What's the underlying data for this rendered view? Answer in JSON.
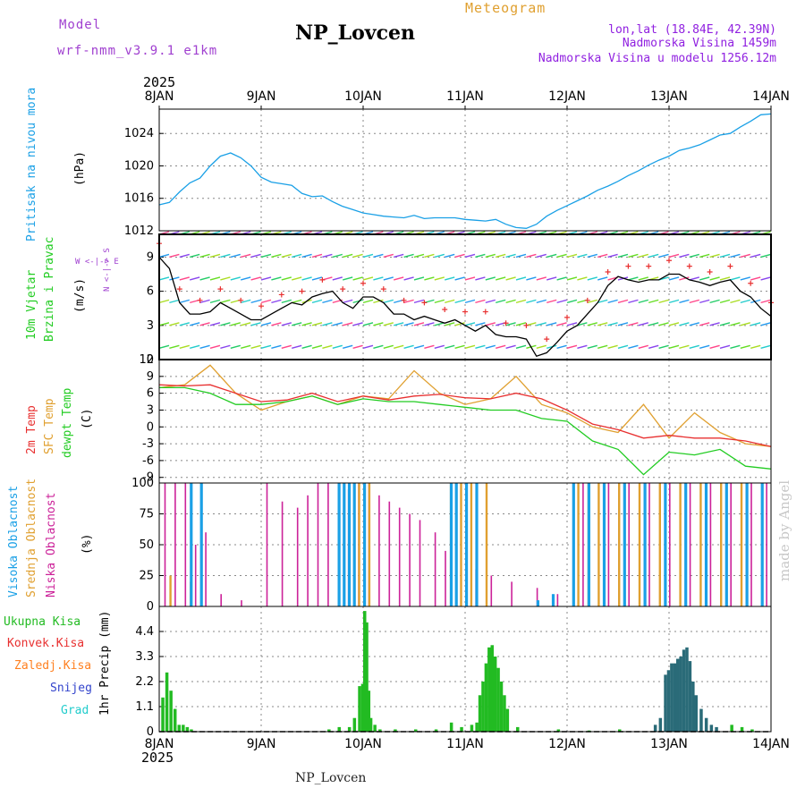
{
  "header": {
    "model_label": "Model",
    "model_value": "wrf-nmm_v3.9.1 e1km",
    "title": "NP_Lovcen",
    "meteogram": "Meteogram",
    "coords": "lon,lat (18.84E, 42.39N)",
    "elevation": "Nadmorska Visina 1459m",
    "model_elevation": "Nadmorska Visina u modelu 1256.12m",
    "year_top": "2025",
    "year_bottom": "2025",
    "footer": "NP_Lovcen",
    "credit": "made by Angel"
  },
  "colors": {
    "pressure": "#1aa0e6",
    "temp2m": "#e83030",
    "sfctemp": "#e0a030",
    "dewpt": "#22cc22",
    "cloud_high": "#1aa0e6",
    "cloud_mid": "#e0a030",
    "cloud_low": "#cc2299",
    "rain_total": "#22bb22",
    "rain_conv": "#e83030",
    "rain_frozen": "#ff8020",
    "snow": "#3344cc",
    "graupel": "#22cccc",
    "header_purple": "#a040d0",
    "header_orange": "#e0a030",
    "header_violet": "#9020e0"
  },
  "chart_data": [
    {
      "type": "line",
      "name": "pressure",
      "ylabel1": "Pritisak na nivou mora",
      "ylabel2": "(hPa)",
      "x_ticks": [
        "8JAN",
        "9JAN",
        "10JAN",
        "11JAN",
        "12JAN",
        "13JAN",
        "14JAN"
      ],
      "y_ticks": [
        "1012",
        "1016",
        "1020",
        "1024"
      ],
      "ylim": [
        1012,
        1027
      ],
      "grid": true,
      "series": [
        {
          "x": [
            0,
            0.1,
            0.2,
            0.3,
            0.4,
            0.5,
            0.6,
            0.7,
            0.8,
            0.9,
            1.0,
            1.1,
            1.2,
            1.3,
            1.4,
            1.5,
            1.6,
            1.7,
            1.8,
            1.9,
            2.0,
            2.1,
            2.2,
            2.3,
            2.4,
            2.5,
            2.6,
            2.7,
            2.8,
            2.9,
            3.0,
            3.1,
            3.2,
            3.3,
            3.4,
            3.5,
            3.6,
            3.7,
            3.8,
            3.9,
            4.0,
            4.1,
            4.2,
            4.3,
            4.4,
            4.5,
            4.6,
            4.7,
            4.8,
            4.9,
            5.0,
            5.1,
            5.2,
            5.3,
            5.4,
            5.5,
            5.6,
            5.7,
            5.8,
            5.9,
            6.0
          ],
          "values": [
            1015.2,
            1015.5,
            1016.8,
            1017.9,
            1018.5,
            1020.0,
            1021.2,
            1021.6,
            1021.0,
            1020.0,
            1018.6,
            1018.0,
            1017.8,
            1017.6,
            1016.6,
            1016.2,
            1016.3,
            1015.6,
            1015.0,
            1014.6,
            1014.2,
            1014.0,
            1013.8,
            1013.7,
            1013.6,
            1013.9,
            1013.5,
            1013.6,
            1013.6,
            1013.6,
            1013.4,
            1013.3,
            1013.2,
            1013.4,
            1012.8,
            1012.4,
            1012.3,
            1012.8,
            1013.8,
            1014.5,
            1015.1,
            1015.7,
            1016.3,
            1017.0,
            1017.5,
            1018.1,
            1018.8,
            1019.4,
            1020.1,
            1020.7,
            1021.2,
            1021.9,
            1022.2,
            1022.6,
            1023.2,
            1023.8,
            1024.0,
            1024.8,
            1025.5,
            1026.3,
            1026.4
          ]
        }
      ]
    },
    {
      "type": "line",
      "name": "wind",
      "ylabel1": "10m Vjetar",
      "ylabel2": "Brzina i Pravac",
      "ylabel3": "(m/s)",
      "dir_legend": "N <-|-> S",
      "dir_legend2": "W <-|-> E",
      "y_ticks": [
        "0",
        "3",
        "6",
        "9"
      ],
      "ylim": [
        0,
        11
      ],
      "series": [
        {
          "name": "speed",
          "x": [
            0,
            0.1,
            0.2,
            0.3,
            0.4,
            0.5,
            0.6,
            0.7,
            0.8,
            0.9,
            1.0,
            1.1,
            1.2,
            1.3,
            1.4,
            1.5,
            1.6,
            1.7,
            1.8,
            1.9,
            2.0,
            2.1,
            2.2,
            2.3,
            2.4,
            2.5,
            2.6,
            2.7,
            2.8,
            2.9,
            3.0,
            3.1,
            3.2,
            3.3,
            3.4,
            3.5,
            3.6,
            3.7,
            3.8,
            3.9,
            4.0,
            4.1,
            4.2,
            4.3,
            4.4,
            4.5,
            4.6,
            4.7,
            4.8,
            4.9,
            5.0,
            5.1,
            5.2,
            5.3,
            5.4,
            5.5,
            5.6,
            5.7,
            5.8,
            5.9,
            6.0
          ],
          "values": [
            9,
            8,
            5,
            4,
            4,
            4.2,
            5,
            4.5,
            4,
            3.5,
            3.5,
            4,
            4.5,
            5,
            4.8,
            5.5,
            5.8,
            6,
            5,
            4.5,
            5.5,
            5.5,
            5,
            4,
            4,
            3.5,
            3.8,
            3.5,
            3.2,
            3.5,
            3,
            2.5,
            3,
            2.2,
            2,
            2,
            1.8,
            0.3,
            0.6,
            1.5,
            2.5,
            3,
            4,
            5,
            6.5,
            7.3,
            7,
            6.8,
            7,
            7,
            7.5,
            7.5,
            7,
            6.8,
            6.5,
            6.8,
            7,
            6,
            5.5,
            4.5,
            3.8
          ]
        }
      ]
    },
    {
      "type": "line",
      "name": "temperature",
      "ylabel1": "2m Temp",
      "ylabel2": "SFC Temp",
      "ylabel3": "dewpt Temp",
      "ylabel4": "(C)",
      "y_ticks": [
        "-9",
        "-6",
        "-3",
        "0",
        "3",
        "6",
        "9",
        "12"
      ],
      "ylim": [
        -10,
        12
      ],
      "series": [
        {
          "name": "2m Temp",
          "x": [
            0,
            0.25,
            0.5,
            0.75,
            1.0,
            1.25,
            1.5,
            1.75,
            2.0,
            2.25,
            2.5,
            2.75,
            3.0,
            3.25,
            3.5,
            3.75,
            4.0,
            4.25,
            4.5,
            4.75,
            5.0,
            5.25,
            5.5,
            5.75,
            6.0
          ],
          "values": [
            7.5,
            7.3,
            7.5,
            6.0,
            4.5,
            4.8,
            6.0,
            4.5,
            5.5,
            4.8,
            5.5,
            5.8,
            5.2,
            5.0,
            6.0,
            5.0,
            3.0,
            0.5,
            -0.5,
            -2.0,
            -1.5,
            -2.0,
            -2.0,
            -2.5,
            -3.5
          ]
        },
        {
          "name": "SFC Temp",
          "x": [
            0,
            0.25,
            0.5,
            0.75,
            1.0,
            1.25,
            1.5,
            1.75,
            2.0,
            2.25,
            2.5,
            2.75,
            3.0,
            3.25,
            3.5,
            3.75,
            4.0,
            4.25,
            4.5,
            4.75,
            5.0,
            5.25,
            5.5,
            5.75,
            6.0
          ],
          "values": [
            7.0,
            7.5,
            11.0,
            6.0,
            3.0,
            4.5,
            5.5,
            4.0,
            5.5,
            5.0,
            10.0,
            6.0,
            4.0,
            5.0,
            9.0,
            4.0,
            2.5,
            0.0,
            -1.0,
            4.0,
            -2.0,
            2.5,
            -1.0,
            -3.0,
            -3.5
          ]
        },
        {
          "name": "dewpt Temp",
          "x": [
            0,
            0.25,
            0.5,
            0.75,
            1.0,
            1.25,
            1.5,
            1.75,
            2.0,
            2.25,
            2.5,
            2.75,
            3.0,
            3.25,
            3.5,
            3.75,
            4.0,
            4.25,
            4.5,
            4.75,
            5.0,
            5.25,
            5.5,
            5.75,
            6.0
          ],
          "values": [
            7.0,
            7.0,
            6.0,
            4.0,
            4.0,
            4.5,
            5.5,
            4.0,
            5.0,
            4.5,
            4.5,
            4.0,
            3.5,
            3.0,
            3.0,
            1.5,
            1.0,
            -2.5,
            -4.0,
            -8.5,
            -4.5,
            -5.0,
            -4.0,
            -7.0,
            -7.5
          ]
        }
      ]
    },
    {
      "type": "bar",
      "name": "clouds",
      "ylabel1": "Visoka Oblacnost",
      "ylabel2": "Srednja Oblacnost",
      "ylabel3": "Niska Oblacnost",
      "ylabel4": "(%)",
      "y_ticks": [
        "0",
        "25",
        "50",
        "75",
        "100"
      ],
      "ylim": [
        0,
        100
      ],
      "series": [
        {
          "name": "Niska Oblacnost",
          "x": [
            0.05,
            0.15,
            0.25,
            0.35,
            0.45,
            0.6,
            0.8,
            1.05,
            1.2,
            1.35,
            1.45,
            1.55,
            1.65,
            1.75,
            1.85,
            1.95,
            2.05,
            2.15,
            2.25,
            2.35,
            2.45,
            2.55,
            2.7,
            2.8,
            3.1,
            3.25,
            3.45,
            3.7,
            3.9,
            4.15,
            4.4,
            4.6,
            4.8,
            5.0,
            5.2,
            5.4,
            5.6,
            5.8,
            5.95
          ],
          "values": [
            100,
            100,
            100,
            50,
            60,
            10,
            5,
            100,
            85,
            80,
            90,
            100,
            100,
            100,
            95,
            100,
            100,
            90,
            85,
            80,
            75,
            70,
            60,
            45,
            30,
            25,
            20,
            15,
            10,
            100,
            100,
            100,
            100,
            100,
            100,
            100,
            100,
            100,
            100
          ]
        },
        {
          "name": "Srednja Oblacnost",
          "x": [
            0.1,
            0.3,
            1.95,
            2.05,
            2.85,
            2.95,
            3.05,
            3.2,
            4.1,
            4.2,
            4.3,
            4.5,
            4.7,
            4.9,
            5.1,
            5.3,
            5.5,
            5.7
          ],
          "values": [
            25,
            20,
            100,
            100,
            100,
            100,
            100,
            100,
            100,
            100,
            100,
            100,
            100,
            100,
            100,
            100,
            100,
            100
          ]
        },
        {
          "name": "Visoka Oblacnost",
          "x": [
            0.3,
            0.4,
            1.75,
            1.8,
            1.85,
            1.9,
            2.0,
            2.85,
            2.9,
            3.0,
            3.1,
            3.7,
            3.85,
            4.05,
            4.2,
            4.35,
            4.55,
            4.75,
            4.95,
            5.15,
            5.35,
            5.55,
            5.75,
            5.9
          ],
          "values": [
            100,
            100,
            100,
            100,
            100,
            100,
            100,
            100,
            100,
            100,
            100,
            5,
            10,
            100,
            100,
            100,
            100,
            100,
            100,
            100,
            100,
            100,
            100,
            100
          ]
        }
      ]
    },
    {
      "type": "bar",
      "name": "precipitation",
      "ylabel1": "1hr Precip (mm)",
      "legend": [
        "Ukupna Kisa",
        "Konvek.Kisa",
        "Zaledj.Kisa",
        "Snijeg",
        "Grad"
      ],
      "y_ticks": [
        "0",
        "1.1",
        "2.2",
        "3.3",
        "4.4"
      ],
      "ylim": [
        0,
        5.5
      ],
      "series": [
        {
          "name": "Ukupna Kisa",
          "x": [
            0.02,
            0.06,
            0.1,
            0.14,
            0.18,
            0.22,
            0.26,
            0.3,
            1.65,
            1.75,
            1.85,
            1.9,
            1.95,
            1.98,
            2.0,
            2.02,
            2.04,
            2.06,
            2.1,
            2.15,
            2.3,
            2.5,
            2.7,
            2.85,
            2.95,
            3.05,
            3.1,
            3.13,
            3.16,
            3.19,
            3.22,
            3.25,
            3.28,
            3.31,
            3.34,
            3.37,
            3.4,
            3.5,
            3.9,
            4.2,
            4.5,
            5.6,
            5.7,
            5.8
          ],
          "values": [
            1.5,
            2.6,
            1.8,
            1.0,
            0.3,
            0.3,
            0.2,
            0.1,
            0.1,
            0.2,
            0.2,
            0.6,
            2.0,
            2.1,
            5.3,
            4.8,
            1.8,
            0.6,
            0.3,
            0.1,
            0.1,
            0.1,
            0.1,
            0.4,
            0.2,
            0.3,
            0.4,
            1.6,
            2.2,
            3.0,
            3.7,
            3.8,
            3.3,
            2.8,
            2.2,
            1.6,
            1.0,
            0.2,
            0.1,
            0.05,
            0.1,
            0.3,
            0.2,
            0.1
          ]
        },
        {
          "name": "Snijeg",
          "x": [
            4.85,
            4.9,
            4.95,
            4.98,
            5.01,
            5.04,
            5.07,
            5.1,
            5.13,
            5.16,
            5.19,
            5.22,
            5.25,
            5.3,
            5.35,
            5.4,
            5.45
          ],
          "values": [
            0.3,
            0.6,
            2.5,
            2.7,
            3.0,
            3.0,
            3.2,
            3.3,
            3.6,
            3.7,
            3.1,
            2.2,
            1.6,
            1.0,
            0.6,
            0.3,
            0.2
          ]
        }
      ]
    }
  ]
}
